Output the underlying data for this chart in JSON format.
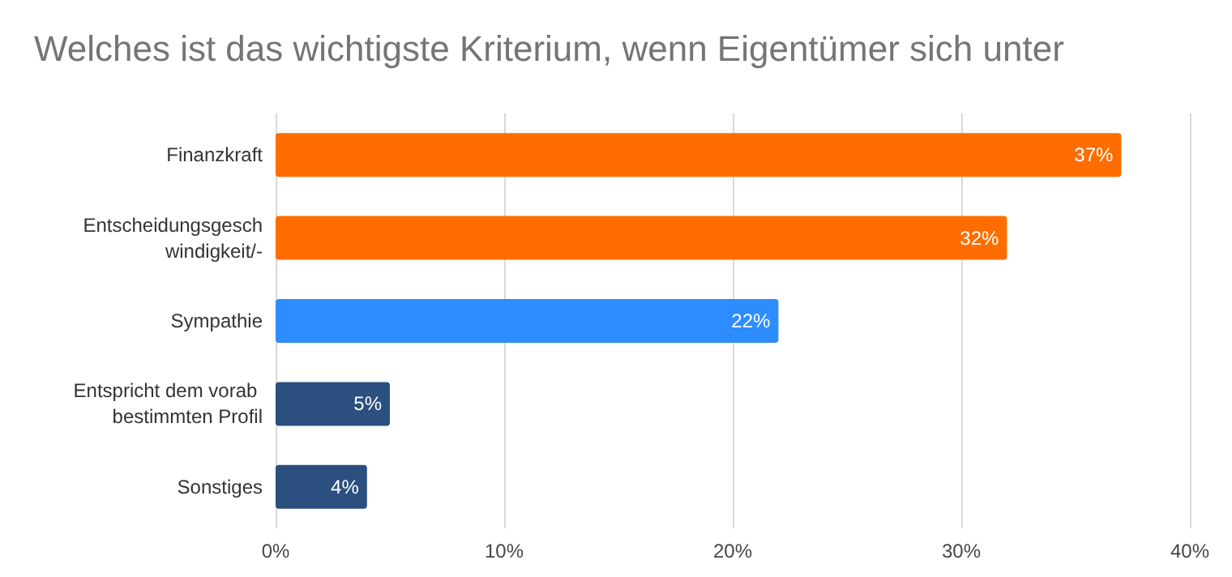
{
  "chart_data": {
    "type": "bar",
    "orientation": "horizontal",
    "title": "Welches ist das wichtigste Kriterium, wenn Eigentümer sich unter",
    "categories": [
      "Finanzkraft",
      "Entscheidungsgeschwindigkeit/-",
      "Sympathie",
      "Entspricht dem vorab bestimmten Profil",
      "Sonstiges"
    ],
    "values": [
      37,
      32,
      22,
      5,
      4
    ],
    "colors": [
      "#ff6d01",
      "#ff6d01",
      "#2d8cff",
      "#2b4f7e",
      "#2b4f7e"
    ],
    "value_labels": [
      "37%",
      "32%",
      "22%",
      "5%",
      "4%"
    ],
    "xlim": [
      0,
      40
    ],
    "xticks": [
      {
        "value": 0,
        "label": "0%"
      },
      {
        "value": 10,
        "label": "10%"
      },
      {
        "value": 20,
        "label": "20%"
      },
      {
        "value": 30,
        "label": "30%"
      },
      {
        "value": 40,
        "label": "40%"
      }
    ],
    "grid": "x"
  }
}
